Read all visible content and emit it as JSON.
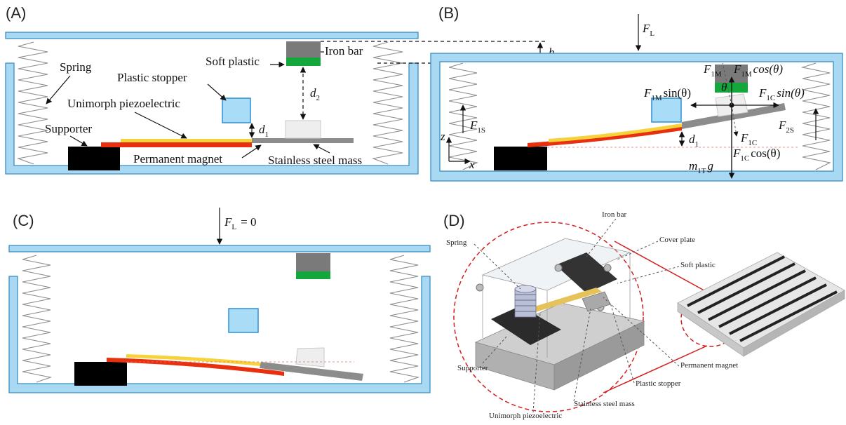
{
  "panels": {
    "a": {
      "letter": "(A)",
      "labels": {
        "iron_bar": "Iron bar",
        "soft_plastic": "Soft plastic",
        "spring": "Spring",
        "plastic_stopper": "Plastic stopper",
        "unimorph": "Unimorph piezoelectric",
        "supporter": "Supporter",
        "permanent_magnet": "Permanent magnet",
        "stainless_mass": "Stainless steel mass"
      },
      "symbols": {
        "h": "h",
        "d2": "d",
        "d2_sub": "2",
        "d1": "d",
        "d1_sub": "1"
      }
    },
    "b": {
      "letter": "(B)",
      "symbols": {
        "FL": "F",
        "FL_sub": "L",
        "F1M_a": "F",
        "F1M_a_sub": "1M",
        "F1M_cos": "F",
        "F1M_cos_sub": "1M",
        "F1M_cos_fn": "cos(θ)",
        "theta": "θ",
        "F1M_sin": "F",
        "F1M_sin_sub": "1M",
        "F1M_sin_fn": "sin(θ)",
        "F1C_sin": "F",
        "F1C_sin_sub": "1C",
        "F1C_sin_fn": "sin(θ)",
        "F1S": "F",
        "F1S_sub": "1S",
        "F2S": "F",
        "F2S_sub": "2S",
        "F1C": "F",
        "F1C_sub": "1C",
        "F1C_cos": "F",
        "F1C_cos_sub": "1C",
        "F1C_cos_fn": "cos(θ)",
        "d1": "d",
        "d1_sub": "1",
        "m1T": "m",
        "m1T_sub": "1T",
        "g": "g",
        "z": "z",
        "x": "x"
      }
    },
    "c": {
      "letter": "(C)",
      "symbols": {
        "FL": "F",
        "FL_sub": "L",
        "eq": "= 0"
      }
    },
    "d": {
      "letter": "(D)",
      "labels": {
        "iron_bar": "Iron bar",
        "cover_plate": "Cover plate",
        "spring": "Spring",
        "soft_plastic": "Soft plastic",
        "permanent_magnet": "Permanent magnet",
        "supporter": "Supporter",
        "plastic_stopper": "Plastic stopper",
        "stainless_mass": "Stainless steel mass",
        "unimorph": "Unimorph piezoelectric"
      }
    }
  },
  "colors": {
    "frame_fill": "#a9d8f2",
    "frame_stroke": "#3a8fc4",
    "supporter": "#000000",
    "magnet": "#e8300f",
    "piezo": "#f7d23a",
    "steel": "#8c8c8c",
    "iron": "#7a7a7a",
    "soft_plastic": "#14a83c",
    "stopper_fill": "#a8dcf7",
    "stopper_stroke": "#2e8fd0",
    "ghost_mass": "#eeeeee",
    "red_line": "#d31f1f"
  }
}
